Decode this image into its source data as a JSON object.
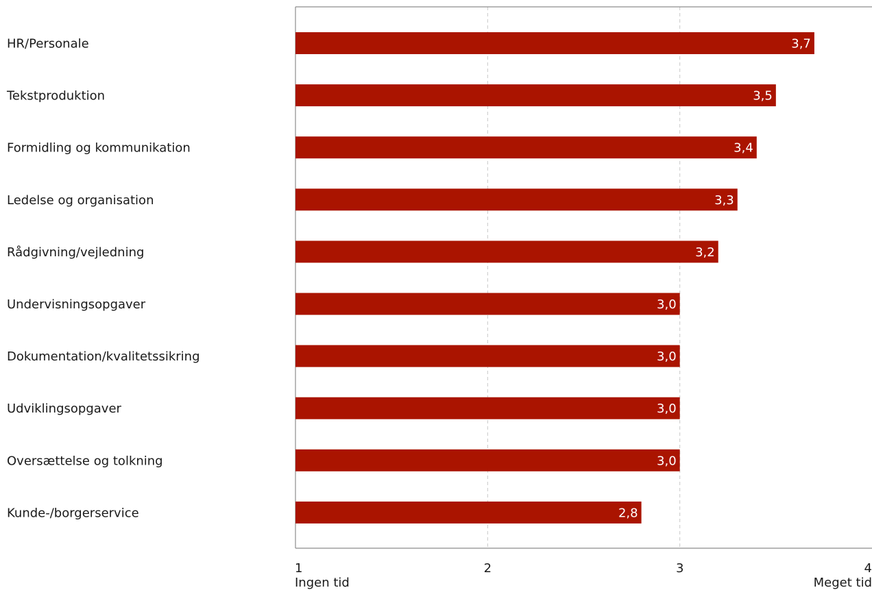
{
  "chart_data": {
    "type": "bar",
    "orientation": "horizontal",
    "categories": [
      "HR/Personale",
      "Tekstproduktion",
      "Formidling og kommunikation",
      "Ledelse og organisation",
      "Rådgivning/vejledning",
      "Undervisningsopgaver",
      "Dokumentation/kvalitetssikring",
      "Udviklingsopgaver",
      "Oversættelse og tolkning",
      "Kunde-/borgerservice"
    ],
    "values": [
      3.7,
      3.5,
      3.4,
      3.3,
      3.2,
      3.0,
      3.0,
      3.0,
      3.0,
      2.8
    ],
    "data_labels": [
      "3,7",
      "3,5",
      "3,4",
      "3,3",
      "3,2",
      "3,0",
      "3,0",
      "3,0",
      "3,0",
      "2,8"
    ],
    "xlim": [
      1,
      4
    ],
    "x_ticks": [
      {
        "value": 1,
        "label": "1",
        "sublabel": "Ingen tid"
      },
      {
        "value": 2,
        "label": "2",
        "sublabel": ""
      },
      {
        "value": 3,
        "label": "3",
        "sublabel": ""
      },
      {
        "value": 4,
        "label": "4",
        "sublabel": "Meget tid"
      }
    ],
    "grid": "vertical dashed",
    "bar_color": "#aa1400",
    "grid_color": "#c8c8c8",
    "axis_color": "#8c8c8c",
    "title": "",
    "xlabel": "",
    "ylabel": ""
  }
}
